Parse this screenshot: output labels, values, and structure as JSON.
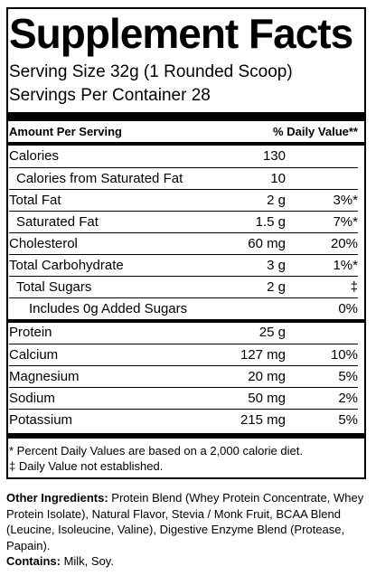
{
  "title": "Supplement Facts",
  "serving_size": "Serving Size 32g (1 Rounded Scoop)",
  "servings_per_container": "Servings Per Container  28",
  "header": {
    "amount": "Amount Per Serving",
    "dv": "% Daily Value**"
  },
  "rows": [
    {
      "name": "Calories",
      "amount": "130",
      "dv": ""
    },
    {
      "name": "Calories from Saturated Fat",
      "amount": "10",
      "dv": ""
    },
    {
      "name": "Total Fat",
      "amount": "2 g",
      "dv": "3%*"
    },
    {
      "name": "Saturated Fat",
      "amount": "1.5 g",
      "dv": "7%*"
    },
    {
      "name": "Cholesterol",
      "amount": "60 mg",
      "dv": "20%"
    },
    {
      "name": "Total Carbohydrate",
      "amount": "3 g",
      "dv": "1%*"
    },
    {
      "name": "Total Sugars",
      "amount": "2 g",
      "dv": "‡"
    },
    {
      "name": "Includes 0g Added Sugars",
      "amount": "",
      "dv": "0%"
    },
    {
      "name": "Protein",
      "amount": "25 g",
      "dv": ""
    },
    {
      "name": "Calcium",
      "amount": "127 mg",
      "dv": "10%"
    },
    {
      "name": "Magnesium",
      "amount": "20 mg",
      "dv": "5%"
    },
    {
      "name": "Sodium",
      "amount": "50 mg",
      "dv": "2%"
    },
    {
      "name": "Potassium",
      "amount": "215 mg",
      "dv": "5%"
    }
  ],
  "footnotes": [
    "* Percent Daily Values are based on a 2,000 calorie diet.",
    "‡ Daily Value not established."
  ],
  "ingredients": {
    "label": "Other Ingredients:",
    "text": " Protein Blend (Whey Protein Concentrate, Whey Protein Isolate), Natural Flavor, Stevia / Monk Fruit, BCAA Blend (Leucine, Isoleucine, Valine), Digestive Enzyme Blend (Protease, Papain)."
  },
  "contains": {
    "label": "Contains:",
    "text": " Milk, Soy."
  }
}
